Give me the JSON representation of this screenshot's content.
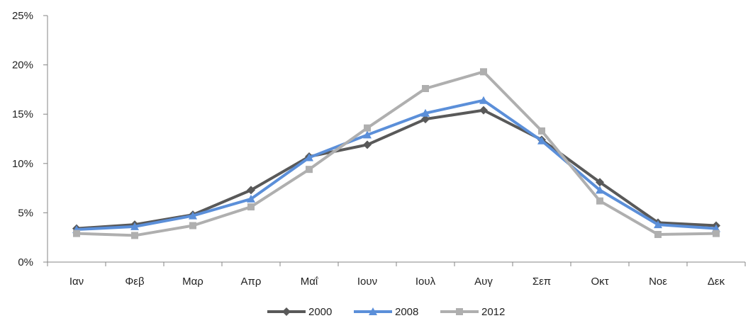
{
  "chart_data": {
    "type": "line",
    "categories": [
      "Ιαν",
      "Φεβ",
      "Μαρ",
      "Απρ",
      "Μαΐ",
      "Ιουν",
      "Ιουλ",
      "Αυγ",
      "Σεπ",
      "Οκτ",
      "Νοε",
      "Δεκ"
    ],
    "y_ticks": [
      "0%",
      "5%",
      "10%",
      "15%",
      "20%",
      "25%"
    ],
    "ylim": [
      0,
      25
    ],
    "grid": false,
    "legend_position": "bottom",
    "series": [
      {
        "name": "2000",
        "color": "#595959",
        "marker": "diamond",
        "values": [
          3.4,
          3.8,
          4.8,
          7.3,
          10.7,
          11.9,
          14.5,
          15.4,
          12.4,
          8.1,
          4.0,
          3.7
        ]
      },
      {
        "name": "2008",
        "color": "#5B8FD9",
        "marker": "triangle",
        "values": [
          3.3,
          3.6,
          4.7,
          6.4,
          10.6,
          12.9,
          15.1,
          16.4,
          12.3,
          7.3,
          3.8,
          3.4
        ]
      },
      {
        "name": "2012",
        "color": "#AFAFAF",
        "marker": "square",
        "values": [
          2.9,
          2.7,
          3.7,
          5.6,
          9.4,
          13.6,
          17.6,
          19.3,
          13.3,
          6.2,
          2.8,
          2.9
        ]
      }
    ]
  }
}
